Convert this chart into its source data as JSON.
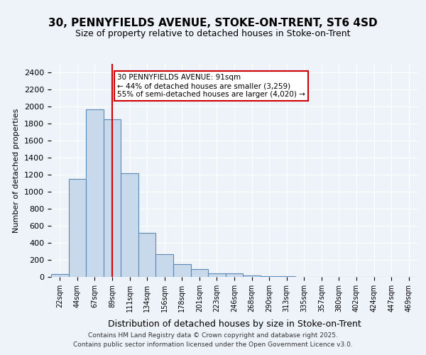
{
  "title1": "30, PENNYFIELDS AVENUE, STOKE-ON-TRENT, ST6 4SD",
  "title2": "Size of property relative to detached houses in Stoke-on-Trent",
  "xlabel": "Distribution of detached houses by size in Stoke-on-Trent",
  "ylabel": "Number of detached properties",
  "bar_values": [
    30,
    1150,
    1970,
    1850,
    1220,
    520,
    270,
    150,
    90,
    45,
    40,
    20,
    10,
    5,
    3,
    2,
    2,
    2,
    2,
    2,
    1
  ],
  "bin_labels": [
    "22sqm",
    "44sqm",
    "67sqm",
    "89sqm",
    "111sqm",
    "134sqm",
    "156sqm",
    "178sqm",
    "201sqm",
    "223sqm",
    "246sqm",
    "268sqm",
    "290sqm",
    "313sqm",
    "335sqm",
    "357sqm",
    "380sqm",
    "402sqm",
    "424sqm",
    "447sqm",
    "469sqm"
  ],
  "bar_color": "#c9d9ec",
  "bar_edge_color": "#5b8ab5",
  "red_line_x": 3,
  "red_line_color": "#cc0000",
  "annotation_text": "30 PENNYFIELDS AVENUE: 91sqm\n← 44% of detached houses are smaller (3,259)\n55% of semi-detached houses are larger (4,020) →",
  "annotation_box_color": "#ffffff",
  "annotation_border_color": "#cc0000",
  "ylim": [
    0,
    2500
  ],
  "yticks": [
    0,
    200,
    400,
    600,
    800,
    1000,
    1200,
    1400,
    1600,
    1800,
    2000,
    2200,
    2400
  ],
  "bg_color": "#eef2f9",
  "plot_bg_color": "#eef2f9",
  "grid_color": "#ffffff",
  "footer_line1": "Contains HM Land Registry data © Crown copyright and database right 2025.",
  "footer_line2": "Contains public sector information licensed under the Open Government Licence v3.0."
}
